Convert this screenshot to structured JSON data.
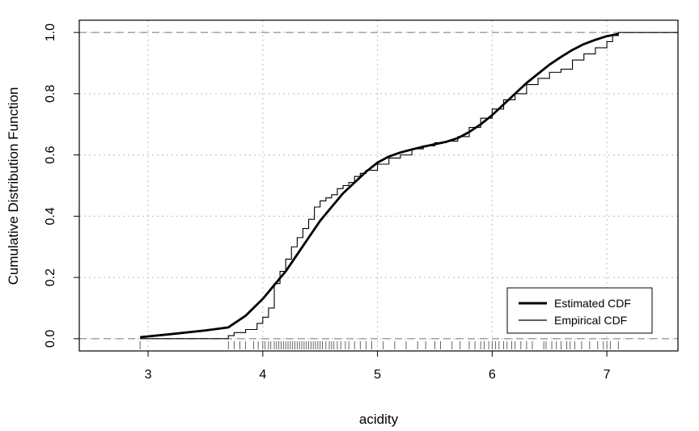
{
  "chart_data": {
    "type": "line",
    "title": "",
    "xlabel": "acidity",
    "ylabel": "Cumulative Distribution Function",
    "xlim": [
      2.4,
      7.62
    ],
    "ylim": [
      -0.04,
      1.04
    ],
    "xticks": [
      3,
      4,
      5,
      6,
      7
    ],
    "yticks": [
      0.0,
      0.2,
      0.4,
      0.6,
      0.8,
      1.0
    ],
    "xtick_labels": [
      "3",
      "4",
      "5",
      "6",
      "7"
    ],
    "ytick_labels": [
      "0.0",
      "0.2",
      "0.4",
      "0.6",
      "0.8",
      "1.0"
    ],
    "grid": "dotted",
    "reference_lines": [
      0,
      1
    ],
    "legend": {
      "position": "bottom-right"
    },
    "series": [
      {
        "name": "Estimated CDF",
        "style": "thick",
        "x": [
          2.93,
          3.2,
          3.5,
          3.7,
          3.85,
          4.0,
          4.1,
          4.2,
          4.3,
          4.4,
          4.5,
          4.6,
          4.7,
          4.8,
          4.9,
          5.0,
          5.1,
          5.2,
          5.3,
          5.4,
          5.5,
          5.6,
          5.7,
          5.8,
          5.9,
          6.0,
          6.1,
          6.2,
          6.3,
          6.4,
          6.5,
          6.6,
          6.7,
          6.8,
          6.9,
          7.0,
          7.1
        ],
        "y": [
          0.005,
          0.015,
          0.027,
          0.037,
          0.075,
          0.13,
          0.175,
          0.22,
          0.275,
          0.33,
          0.385,
          0.43,
          0.475,
          0.51,
          0.545,
          0.575,
          0.595,
          0.608,
          0.618,
          0.627,
          0.635,
          0.643,
          0.655,
          0.675,
          0.7,
          0.73,
          0.765,
          0.8,
          0.835,
          0.865,
          0.895,
          0.92,
          0.943,
          0.962,
          0.976,
          0.988,
          0.995
        ]
      },
      {
        "name": "Empirical CDF",
        "style": "step",
        "x": [
          2.93,
          3.7,
          3.75,
          3.85,
          3.95,
          4.0,
          4.05,
          4.1,
          4.15,
          4.2,
          4.25,
          4.3,
          4.35,
          4.4,
          4.45,
          4.5,
          4.55,
          4.6,
          4.65,
          4.7,
          4.75,
          4.8,
          4.85,
          4.9,
          5.0,
          5.1,
          5.2,
          5.3,
          5.4,
          5.5,
          5.6,
          5.7,
          5.8,
          5.9,
          6.0,
          6.1,
          6.2,
          6.3,
          6.4,
          6.5,
          6.6,
          6.7,
          6.8,
          6.9,
          7.0,
          7.05,
          7.1
        ],
        "y": [
          0.0,
          0.01,
          0.02,
          0.03,
          0.05,
          0.07,
          0.1,
          0.18,
          0.22,
          0.26,
          0.3,
          0.33,
          0.36,
          0.39,
          0.43,
          0.45,
          0.46,
          0.47,
          0.49,
          0.5,
          0.51,
          0.53,
          0.54,
          0.55,
          0.57,
          0.59,
          0.6,
          0.62,
          0.63,
          0.64,
          0.645,
          0.66,
          0.69,
          0.72,
          0.75,
          0.78,
          0.8,
          0.83,
          0.85,
          0.87,
          0.88,
          0.91,
          0.93,
          0.95,
          0.97,
          0.99,
          1.0
        ]
      }
    ],
    "rug": [
      2.93,
      3.7,
      3.75,
      3.8,
      3.85,
      3.92,
      3.96,
      4.0,
      4.02,
      4.05,
      4.07,
      4.1,
      4.12,
      4.14,
      4.16,
      4.18,
      4.2,
      4.22,
      4.24,
      4.26,
      4.28,
      4.3,
      4.32,
      4.34,
      4.36,
      4.38,
      4.4,
      4.42,
      4.44,
      4.46,
      4.48,
      4.5,
      4.52,
      4.55,
      4.58,
      4.6,
      4.62,
      4.65,
      4.68,
      4.72,
      4.75,
      4.8,
      4.85,
      4.9,
      4.95,
      5.05,
      5.15,
      5.25,
      5.35,
      5.42,
      5.5,
      5.55,
      5.65,
      5.72,
      5.8,
      5.85,
      5.9,
      5.93,
      5.97,
      6.0,
      6.03,
      6.06,
      6.1,
      6.13,
      6.17,
      6.2,
      6.25,
      6.3,
      6.35,
      6.45,
      6.47,
      6.52,
      6.56,
      6.6,
      6.65,
      6.68,
      6.72,
      6.78,
      6.85,
      6.92,
      6.97,
      7.0,
      7.03,
      7.1
    ]
  }
}
